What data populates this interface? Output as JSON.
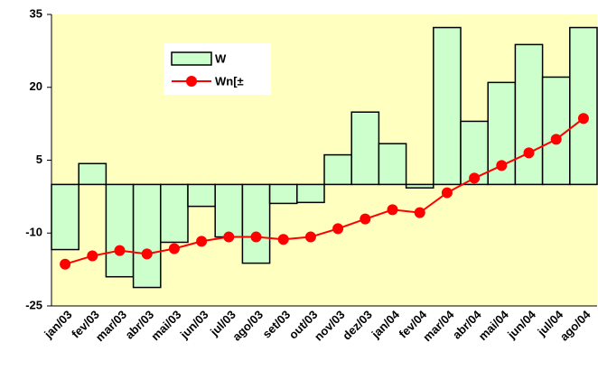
{
  "chart_data": {
    "type": "bar_line",
    "categories": [
      "jan/03",
      "fev/03",
      "mar/03",
      "abr/03",
      "mai/03",
      "jun/03",
      "jul/03",
      "ago/03",
      "set/03",
      "out/03",
      "nov/03",
      "dez/03",
      "jan/04",
      "fev/04",
      "mar/04",
      "abr/04",
      "mai/04",
      "jun/04",
      "jul/04",
      "ago/04"
    ],
    "series": [
      {
        "name": "W",
        "kind": "bar",
        "color": "#ccffcc",
        "values": [
          -13.4,
          4.3,
          -19,
          -21.2,
          -11.9,
          -4.5,
          -10.8,
          -16.2,
          -3.9,
          -3.7,
          6.1,
          14.9,
          8.4,
          -0.7,
          32.3,
          13.0,
          21.0,
          28.8,
          22.1,
          32.3
        ]
      },
      {
        "name": "Wn[±",
        "kind": "line",
        "color": "#ff0000",
        "values": [
          -16.4,
          -14.7,
          -13.6,
          -14.3,
          -13.2,
          -11.7,
          -10.8,
          -10.8,
          -11.3,
          -10.8,
          -9.1,
          -7.1,
          -5.2,
          -5.8,
          -1.7,
          1.3,
          3.9,
          6.5,
          9.3,
          13.6
        ]
      }
    ],
    "ylim": [
      -25,
      35
    ],
    "yticks": [
      -25,
      -10,
      5,
      20,
      35
    ],
    "plot_background": "#ffffc0"
  }
}
